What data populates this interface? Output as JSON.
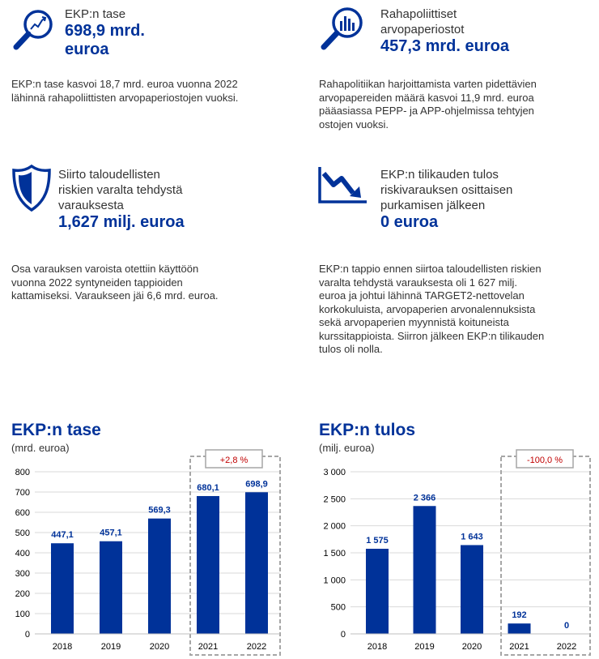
{
  "colors": {
    "brand": "#003299",
    "bar": "#003299",
    "change": "#c00000",
    "grid": "#d9d9d9",
    "box": "#a6a6a6"
  },
  "cards": [
    {
      "icon": "magnifier-trend-icon",
      "label": "EKP:n tase",
      "value": "698,9 mrd.\neuroa",
      "desc": "EKP:n tase kasvoi 18,7 mrd. euroa vuonna 2022\nlähinnä rahapoliittisten arvopaperiostojen vuoksi."
    },
    {
      "icon": "magnifier-bars-icon",
      "label": "Rahapoliittiset\narvopaperiostot",
      "value": "457,3 mrd. euroa",
      "desc": "Rahapolitiikan harjoittamista varten pidettävien\narvopapereiden määrä kasvoi 11,9 mrd. euroa\npääasiassa PEPP- ja APP-ohjelmissa tehtyjen\nostojen vuoksi."
    },
    {
      "icon": "shield-icon",
      "label": "Siirto taloudellisten\nriskien varalta tehdystä\nvarauksesta",
      "value": "1,627 milj. euroa",
      "desc": "Osa varauksen varoista otettiin käyttöön\nvuonna 2022 syntyneiden tappioiden\nkattamiseksi. Varaukseen jäi 6,6 mrd. euroa."
    },
    {
      "icon": "downtrend-icon",
      "label": "EKP:n tilikauden tulos\nriskivarauksen osittaisen\npurkamisen jälkeen",
      "value": "0 euroa",
      "desc": "EKP:n tappio ennen siirtoa taloudellisten riskien\nvaralta tehdystä varauksesta oli 1 627 milj.\neuroa ja johtui lähinnä TARGET2-nettovelan\nkorkokuluista, arvopaperien arvonalennuksista\nsekä arvopaperien myynnistä koituneista\nkurssitappioista. Siirron jälkeen EKP:n tilikauden\ntulos oli nolla."
    }
  ],
  "chart_data": [
    {
      "type": "bar",
      "title": "EKP:n tase",
      "unit": "(mrd. euroa)",
      "categories": [
        "2018",
        "2019",
        "2020",
        "2021",
        "2022"
      ],
      "values": [
        447.1,
        457.1,
        569.3,
        680.1,
        698.9
      ],
      "value_labels": [
        "447,1",
        "457,1",
        "569,3",
        "680,1",
        "698,9"
      ],
      "ylim": [
        0,
        800
      ],
      "yticks": [
        0,
        100,
        200,
        300,
        400,
        500,
        600,
        700,
        800
      ],
      "ytick_labels": [
        "0",
        "100",
        "200",
        "300",
        "400",
        "500",
        "600",
        "700",
        "800"
      ],
      "grid": true,
      "change_label": "+2,8 %"
    },
    {
      "type": "bar",
      "title": "EKP:n tulos",
      "unit": "(milj. euroa)",
      "categories": [
        "2018",
        "2019",
        "2020",
        "2021",
        "2022"
      ],
      "values": [
        1575,
        2366,
        1643,
        192,
        0
      ],
      "value_labels": [
        "1 575",
        "2 366",
        "1 643",
        "192",
        "0"
      ],
      "ylim": [
        0,
        3000
      ],
      "yticks": [
        0,
        500,
        1000,
        1500,
        2000,
        2500,
        3000
      ],
      "ytick_labels": [
        "0",
        "500",
        "1 000",
        "1 500",
        "2 000",
        "2 500",
        "3 000"
      ],
      "grid": true,
      "change_label": "-100,0 %"
    }
  ]
}
